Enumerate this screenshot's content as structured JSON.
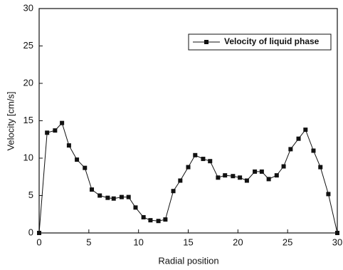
{
  "chart_data": {
    "type": "line",
    "x_label": "Radial position",
    "y_label": "Velocity  [cm/s]",
    "x": [
      0,
      0.8,
      1.6,
      2.3,
      3.0,
      3.8,
      4.6,
      5.3,
      6.1,
      6.9,
      7.5,
      8.3,
      9.0,
      9.7,
      10.5,
      11.2,
      12.0,
      12.7,
      13.5,
      14.2,
      15.0,
      15.7,
      16.5,
      17.2,
      18.0,
      18.7,
      19.5,
      20.2,
      20.9,
      21.7,
      22.4,
      23.1,
      23.9,
      24.6,
      25.3,
      26.1,
      26.8,
      27.6,
      28.3,
      29.1,
      30
    ],
    "series": [
      {
        "name": "Velocity of liquid phase",
        "color": "#111111",
        "values": [
          0,
          13.4,
          13.7,
          14.7,
          11.7,
          9.8,
          8.7,
          5.8,
          5.0,
          4.7,
          4.6,
          4.8,
          4.8,
          3.4,
          2.1,
          1.7,
          1.6,
          1.8,
          5.6,
          7.0,
          8.8,
          10.4,
          9.9,
          9.6,
          7.4,
          7.7,
          7.6,
          7.4,
          7.0,
          8.2,
          8.2,
          7.2,
          7.7,
          8.9,
          11.2,
          12.6,
          13.8,
          11.0,
          8.8,
          5.2,
          0
        ]
      }
    ],
    "xlim": [
      0,
      30
    ],
    "xticks": [
      0,
      5,
      10,
      15,
      20,
      25,
      30
    ],
    "ylim": [
      0,
      30
    ],
    "yticks": [
      0,
      5,
      10,
      15,
      20,
      25,
      30
    ],
    "legend": "upper-right"
  }
}
